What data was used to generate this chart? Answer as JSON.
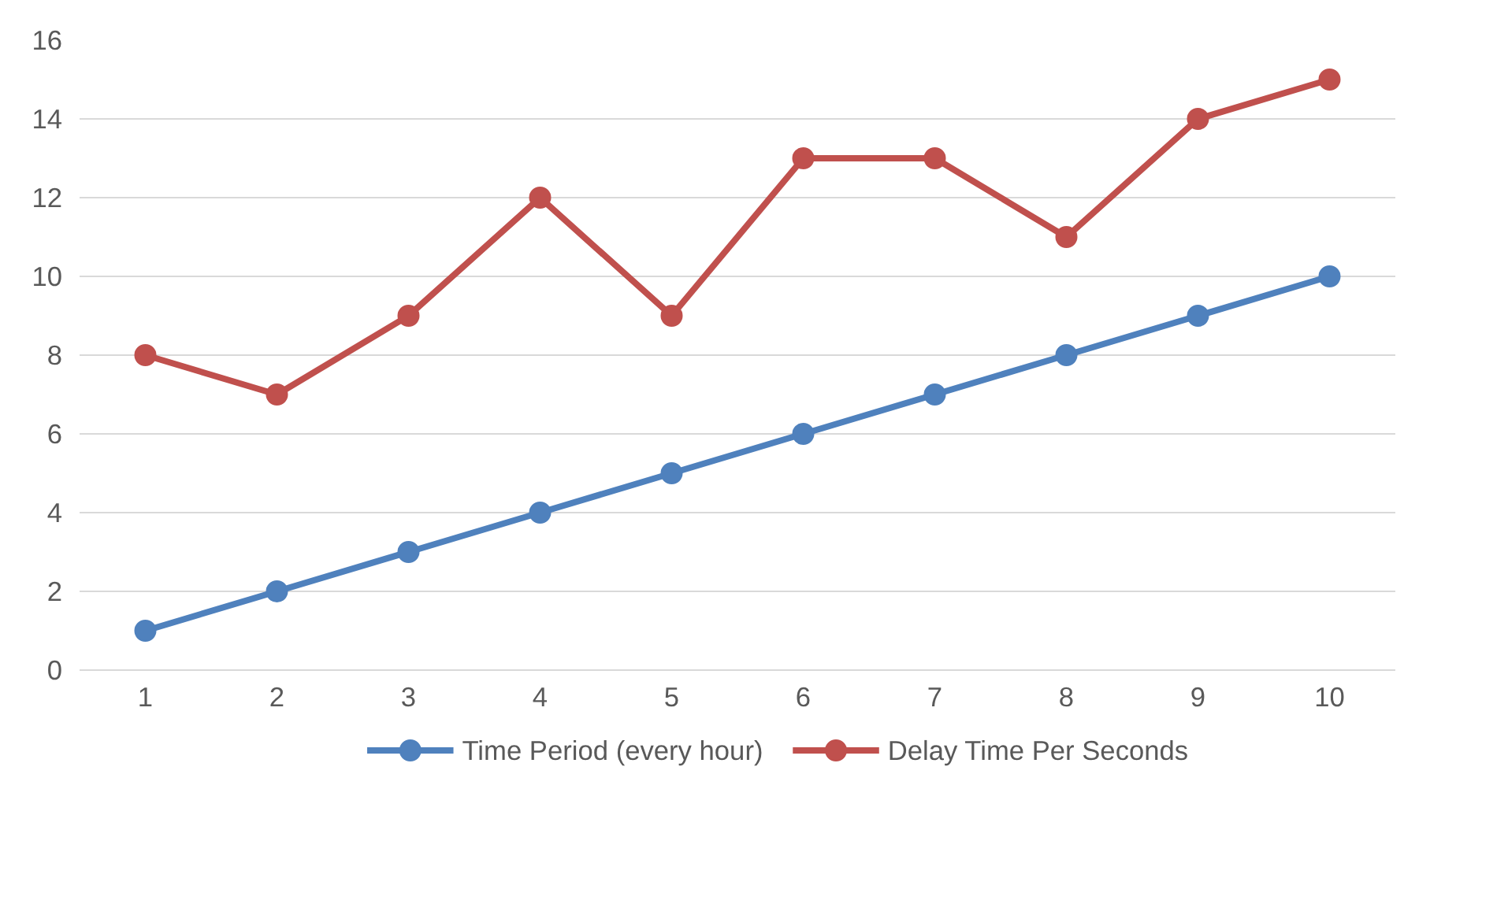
{
  "chart_data": {
    "type": "line",
    "categories": [
      "1",
      "2",
      "3",
      "4",
      "5",
      "6",
      "7",
      "8",
      "9",
      "10"
    ],
    "series": [
      {
        "name": "Time Period (every hour)",
        "color": "#4f81bd",
        "values": [
          1,
          2,
          3,
          4,
          5,
          6,
          7,
          8,
          9,
          10
        ]
      },
      {
        "name": "Delay Time Per Seconds",
        "color": "#c0504d",
        "values": [
          8,
          7,
          9,
          12,
          9,
          13,
          13,
          11,
          14,
          15
        ]
      }
    ],
    "ylim": [
      0,
      16
    ],
    "yticks": [
      0,
      2,
      4,
      6,
      8,
      10,
      12,
      14,
      16
    ],
    "grid": "y",
    "legend": "bottom",
    "marker": "circle",
    "line_style": "solid"
  }
}
